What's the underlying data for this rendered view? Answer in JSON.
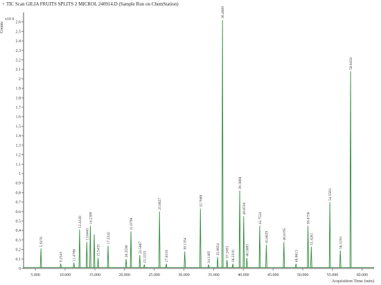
{
  "header": {
    "marker": "+",
    "title": "TIC Scan GILIA FRUITS SPLITS 2 MICROL 240914.D (Sample Run on ChemStation)"
  },
  "chart_data": {
    "type": "line",
    "title": "TIC Scan GILIA FRUITS SPLITS 2 MICROL 240914.D (Sample Run on ChemStation)",
    "ylabel": "Counts",
    "y_multiplier": "x10 6",
    "xlabel": "Acquisition Time (min)",
    "xlim": [
      3.0,
      62.0
    ],
    "ylim": [
      0,
      2.7
    ],
    "x_ticks": [
      5.0,
      10.0,
      15.0,
      20.0,
      25.0,
      30.0,
      35.0,
      40.0,
      45.0,
      50.0,
      55.0,
      60.0
    ],
    "x_tick_labels": [
      "5.000",
      "10.000",
      "15.000",
      "20.000",
      "25.000",
      "30.000",
      "35.000",
      "40.000",
      "45.000",
      "50.000",
      "55.000",
      "60.000"
    ],
    "y_ticks": [
      0,
      0.1,
      0.2,
      0.3,
      0.4,
      0.5,
      0.6,
      0.7,
      0.8,
      0.9,
      1.0,
      1.1,
      1.2,
      1.3,
      1.4,
      1.5,
      1.6,
      1.7,
      1.8,
      1.9,
      2.0,
      2.1,
      2.2,
      2.3,
      2.4,
      2.5,
      2.6
    ],
    "y_tick_labels": [
      "0",
      "0.1",
      "0.2",
      "0.3",
      "0.4",
      "0.5",
      "0.6",
      "0.7",
      "0.8",
      "0.9",
      "1",
      "1.1",
      "1.2",
      "1.3",
      "1.4",
      "1.5",
      "1.6",
      "1.7",
      "1.8",
      "1.9",
      "2",
      "2.1",
      "2.2",
      "2.3",
      "2.4",
      "2.5",
      "2.6"
    ],
    "line_color": "#2e8b3a",
    "grid": false,
    "peaks": [
      {
        "x": 5.9276,
        "y": 0.21,
        "label": "5.9276"
      },
      {
        "x": 9.2543,
        "y": 0.05,
        "label": "9.2543"
      },
      {
        "x": 11.4706,
        "y": 0.06,
        "label": "11.4706"
      },
      {
        "x": 12.432,
        "y": 0.41,
        "label": "12.4320"
      },
      {
        "x": 13.6445,
        "y": 0.28,
        "label": "13.6445"
      },
      {
        "x": 14.2389,
        "y": 0.45,
        "label": "14.2389"
      },
      {
        "x": 14.9,
        "y": 0.36,
        "label": ""
      },
      {
        "x": 15.5435,
        "y": 0.11,
        "label": "15.5435"
      },
      {
        "x": 17.2242,
        "y": 0.24,
        "label": "17.2242"
      },
      {
        "x": 20.259,
        "y": 0.1,
        "label": "20.2590"
      },
      {
        "x": 21.0798,
        "y": 0.39,
        "label": "21.0798"
      },
      {
        "x": 22.5667,
        "y": 0.14,
        "label": "22.5667"
      },
      {
        "x": 23.3255,
        "y": 0.04,
        "label": "23.3255"
      },
      {
        "x": 25.8827,
        "y": 0.6,
        "label": "25.8827"
      },
      {
        "x": 27.0318,
        "y": 0.05,
        "label": "27.0318"
      },
      {
        "x": 30.1354,
        "y": 0.18,
        "label": "30.1354"
      },
      {
        "x": 32.768,
        "y": 0.63,
        "label": "32.7680"
      },
      {
        "x": 34.1405,
        "y": 0.04,
        "label": "34.1405"
      },
      {
        "x": 35.6654,
        "y": 0.12,
        "label": "35.6654"
      },
      {
        "x": 36.4889,
        "y": 2.62,
        "label": "36.4889"
      },
      {
        "x": 37.2493,
        "y": 0.09,
        "label": "37.2493"
      },
      {
        "x": 38.2316,
        "y": 0.05,
        "label": "38.2316"
      },
      {
        "x": 39.3868,
        "y": 0.82,
        "label": "39.3868"
      },
      {
        "x": 40.055,
        "y": 0.55,
        "label": "40.0550"
      },
      {
        "x": 40.5885,
        "y": 0.11,
        "label": "40.5885"
      },
      {
        "x": 42.7524,
        "y": 0.45,
        "label": "42.7524"
      },
      {
        "x": 43.8629,
        "y": 0.25,
        "label": "43.8629"
      },
      {
        "x": 46.8195,
        "y": 0.28,
        "label": "46.8195"
      },
      {
        "x": 48.8613,
        "y": 0.05,
        "label": "48.8613"
      },
      {
        "x": 50.8756,
        "y": 0.45,
        "label": "50.8756"
      },
      {
        "x": 51.4281,
        "y": 0.23,
        "label": "51.4281"
      },
      {
        "x": 54.5563,
        "y": 0.7,
        "label": "54.5563"
      },
      {
        "x": 56.3193,
        "y": 0.19,
        "label": "56.3193"
      },
      {
        "x": 58.0458,
        "y": 2.08,
        "label": "58.0458"
      }
    ]
  }
}
